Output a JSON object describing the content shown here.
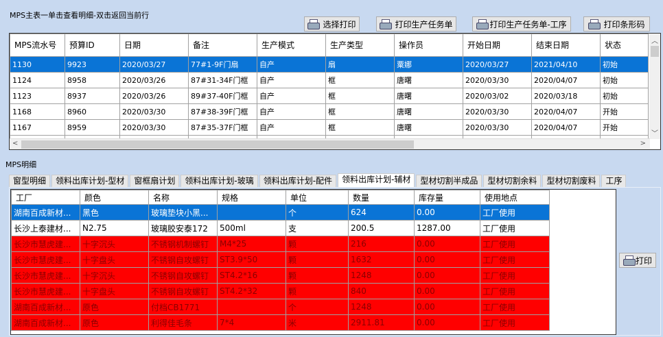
{
  "master": {
    "title": "MPS主表一单击查看明细-双击返回当前行",
    "buttons": [
      "选择打印",
      "打印生产任务单",
      "打印生产任务单-工序",
      "打印条形码"
    ],
    "columns": [
      "MPS流水号",
      "预算ID",
      "日期",
      "备注",
      "生产模式",
      "生产类型",
      "操作员",
      "开始日期",
      "结束日期",
      "状态"
    ],
    "rows": [
      [
        "1130",
        "9923",
        "2020/03/27",
        "77#1-9F门扇",
        "自产",
        "扇",
        "粟娜",
        "2020/03/27",
        "2021/04/10",
        "初始"
      ],
      [
        "1124",
        "8958",
        "2020/03/26",
        "87#31-34F门框",
        "自产",
        "框",
        "唐曙",
        "2020/03/30",
        "2020/04/07",
        "初始"
      ],
      [
        "1123",
        "8937",
        "2020/03/26",
        "89#37-40F门框",
        "自产",
        "框",
        "唐曙",
        "2020/03/02",
        "2020/03/18",
        "初始"
      ],
      [
        "1168",
        "8960",
        "2020/03/30",
        "87#38-39F门框",
        "自产",
        "框",
        "唐曙",
        "2020/03/30",
        "2020/04/07",
        "开始"
      ],
      [
        "1167",
        "8959",
        "2020/03/30",
        "87#35-37F门框",
        "自产",
        "框",
        "唐曙",
        "2020/03/30",
        "2020/04/07",
        "开始"
      ]
    ]
  },
  "detail": {
    "title": "MPS明细",
    "tabs": [
      "窗型明细",
      "领料出库计划-型材",
      "窗框扇计划",
      "领料出库计划-玻璃",
      "领料出库计划-配件",
      "领料出库计划-辅材",
      "型材切割半成品",
      "型材切割余料",
      "型材切割废料",
      "工序"
    ],
    "active_tab": 5,
    "columns": [
      "工厂",
      "颜色",
      "名称",
      "规格",
      "单位",
      "数量",
      "库存量",
      "使用地点"
    ],
    "rows": [
      [
        "湖南百成新材...",
        "黑色",
        "玻璃垫块小黑...",
        "",
        "个",
        "624",
        "0.00",
        "工厂使用"
      ],
      [
        "长沙上泰建材...",
        "N2.75",
        "玻璃胶安泰172",
        "500ml",
        "支",
        "200.5",
        "1287.00",
        "工厂使用"
      ],
      [
        "长沙市慧虎建...",
        "十字沉头",
        "不锈钢机制螺钉",
        "M4*25",
        "颗",
        "216",
        "0.00",
        "工厂使用"
      ],
      [
        "长沙市慧虎建...",
        "十字盘头",
        "不锈钢自攻螺钉",
        "ST3.9*50",
        "颗",
        "1632",
        "0.00",
        "工厂使用"
      ],
      [
        "长沙市慧虎建...",
        "十字沉头",
        "不锈钢自攻螺钉",
        "ST4.2*16",
        "颗",
        "1248",
        "0.00",
        "工厂使用"
      ],
      [
        "长沙市慧虎建...",
        "十字盘头",
        "不锈钢自攻螺钉",
        "ST4.2*32",
        "颗",
        "840",
        "0.00",
        "工厂使用"
      ],
      [
        "湖南百成新材...",
        "原色",
        "付档CB1771",
        "",
        "个",
        "1248",
        "0.00",
        "工厂使用"
      ],
      [
        "湖南百成新材...",
        "原色",
        "利得佳毛条",
        "7*4",
        "米",
        "2911.81",
        "0.00",
        "工厂使用"
      ]
    ],
    "row_styles": [
      "selected",
      "normal",
      "red",
      "red",
      "red",
      "red",
      "red",
      "red"
    ],
    "print_label": "打印"
  },
  "colors": {
    "selected": "#0a74d6",
    "alert": "#ff0000",
    "background": "#c8d9f0"
  },
  "icons": [
    "printer-icon",
    "scroll-left-icon",
    "scroll-right-icon",
    "scroll-up-icon",
    "scroll-down-icon"
  ]
}
